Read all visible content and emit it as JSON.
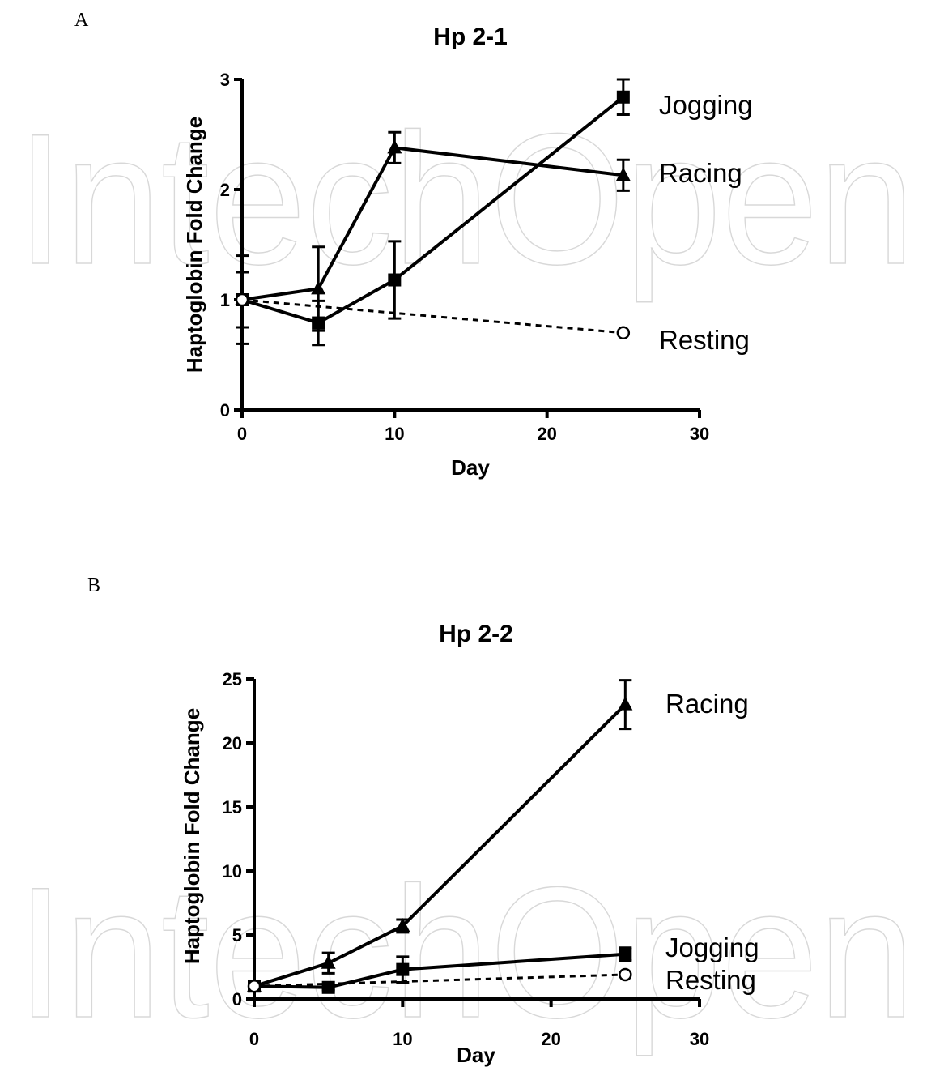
{
  "watermark": "IntechOpen",
  "chart_data": [
    {
      "type": "line",
      "panel_label": "A",
      "title": "Hp 2-1",
      "xlabel": "Day",
      "ylabel": "Haptoglobin Fold Change",
      "xlim": [
        0,
        30
      ],
      "ylim": [
        0,
        3
      ],
      "xticks": [
        0,
        10,
        20,
        30
      ],
      "yticks": [
        0,
        1,
        2,
        3
      ],
      "series": [
        {
          "name": "Jogging",
          "marker": "square",
          "dash": false,
          "x": [
            0,
            5,
            10,
            25
          ],
          "y": [
            1.0,
            0.79,
            1.18,
            2.84
          ],
          "err": [
            0.25,
            0.2,
            0.35,
            0.16
          ]
        },
        {
          "name": "Racing",
          "marker": "triangle",
          "dash": false,
          "x": [
            0,
            5,
            10,
            25
          ],
          "y": [
            1.0,
            1.1,
            2.38,
            2.13
          ],
          "err": [
            0.4,
            0.38,
            0.14,
            0.14
          ]
        },
        {
          "name": "Resting",
          "marker": "circle",
          "dash": true,
          "x": [
            0,
            25
          ],
          "y": [
            1.0,
            0.7
          ],
          "err": [
            0,
            0
          ]
        }
      ]
    },
    {
      "type": "line",
      "panel_label": "B",
      "title": "Hp 2-2",
      "xlabel": "Day",
      "ylabel": "Haptoglobin Fold Change",
      "xlim": [
        0,
        30
      ],
      "ylim": [
        0,
        25
      ],
      "xticks": [
        0,
        10,
        20,
        30
      ],
      "yticks": [
        0,
        5,
        10,
        15,
        20,
        25
      ],
      "series": [
        {
          "name": "Racing",
          "marker": "triangle",
          "dash": false,
          "x": [
            0,
            5,
            10,
            25
          ],
          "y": [
            1.0,
            2.8,
            5.7,
            23.0
          ],
          "err": [
            0.2,
            0.8,
            0.5,
            1.9
          ]
        },
        {
          "name": "Jogging",
          "marker": "square",
          "dash": false,
          "x": [
            0,
            5,
            10,
            25
          ],
          "y": [
            1.0,
            0.9,
            2.3,
            3.5
          ],
          "err": [
            0.2,
            0.2,
            1.0,
            0.5
          ]
        },
        {
          "name": "Resting",
          "marker": "circle",
          "dash": true,
          "x": [
            0,
            25
          ],
          "y": [
            1.0,
            1.9
          ],
          "err": [
            0,
            0
          ]
        }
      ]
    }
  ]
}
